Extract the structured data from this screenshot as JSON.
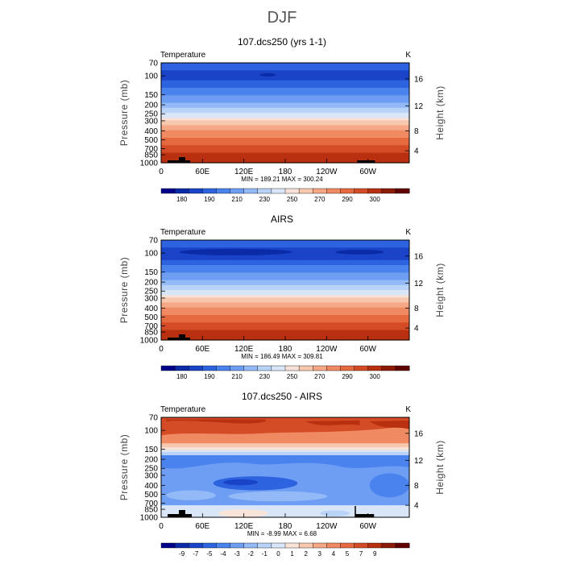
{
  "figure": {
    "title": "DJF"
  },
  "colors": {
    "temp_scale": [
      "#00008b",
      "#0a2aa8",
      "#1a44c8",
      "#2e63e0",
      "#4a82ee",
      "#6d9ef4",
      "#93baf7",
      "#b8d2f8",
      "#d8e6f8",
      "#f6e2d8",
      "#f8c8ae",
      "#f6a886",
      "#f08a62",
      "#e66a40",
      "#d44c26",
      "#b8300f",
      "#8c1a08",
      "#600000"
    ],
    "diff_scale": [
      "#00008b",
      "#0a2aa8",
      "#1a44c8",
      "#2e63e0",
      "#4a82ee",
      "#6d9ef4",
      "#93baf7",
      "#b8d2f8",
      "#d8e6f8",
      "#f8e4d8",
      "#f8c8ae",
      "#f6a886",
      "#f08a62",
      "#e66a40",
      "#d44c26",
      "#b8300f",
      "#8c1a08",
      "#600000"
    ],
    "terrain": "#000000"
  },
  "chart_data": [
    {
      "type": "heatmap",
      "title": "107.dcs250 (yrs 1-1)",
      "left_label": "Temperature",
      "unit": "K",
      "ylabel": "Pressure (mb)",
      "y2label": "Height (km)",
      "xticks": [
        "0",
        "60E",
        "120E",
        "180",
        "120W",
        "60W"
      ],
      "yticks": [
        "70",
        "100",
        "150",
        "200",
        "250",
        "300",
        "400",
        "500",
        "700",
        "850",
        "1000"
      ],
      "y2ticks": [
        "16",
        "12",
        "8",
        "4"
      ],
      "stats": "MIN = 189.21   MAX = 300.24",
      "colorbar_labels": [
        "180",
        "190",
        "210",
        "230",
        "250",
        "270",
        "290",
        "300"
      ],
      "field": "temperature"
    },
    {
      "type": "heatmap",
      "title": "AIRS",
      "left_label": "Temperature",
      "unit": "K",
      "ylabel": "Pressure (mb)",
      "y2label": "Height (km)",
      "xticks": [
        "0",
        "60E",
        "120E",
        "180",
        "120W",
        "60W"
      ],
      "yticks": [
        "70",
        "100",
        "150",
        "200",
        "250",
        "300",
        "400",
        "500",
        "700",
        "850",
        "1000"
      ],
      "y2ticks": [
        "16",
        "12",
        "8",
        "4"
      ],
      "stats": "MIN = 186.49   MAX = 309.81",
      "colorbar_labels": [
        "180",
        "190",
        "210",
        "230",
        "250",
        "270",
        "290",
        "300"
      ],
      "field": "temperature"
    },
    {
      "type": "heatmap",
      "title": "107.dcs250 - AIRS",
      "left_label": "Temperature",
      "unit": "K",
      "ylabel": "Pressure (mb)",
      "y2label": "Height (km)",
      "xticks": [
        "0",
        "60E",
        "120E",
        "180",
        "120W",
        "60W"
      ],
      "yticks": [
        "70",
        "100",
        "150",
        "200",
        "250",
        "300",
        "400",
        "500",
        "700",
        "850",
        "1000"
      ],
      "y2ticks": [
        "16",
        "12",
        "8",
        "4"
      ],
      "stats": "MIN =  -8.99   MAX =   6.68",
      "colorbar_labels": [
        "-9",
        "-7",
        "-5",
        "-4",
        "-3",
        "-2",
        "-1",
        "0",
        "1",
        "2",
        "3",
        "4",
        "5",
        "7",
        "9"
      ],
      "field": "difference"
    }
  ]
}
